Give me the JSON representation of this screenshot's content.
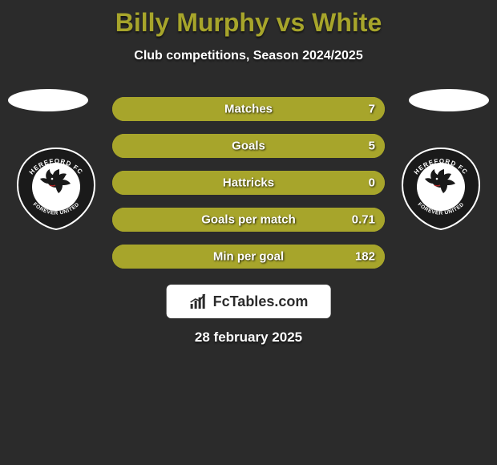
{
  "title": "Billy Murphy vs White",
  "title_color": "#a7a52b",
  "subtitle": "Club competitions, Season 2024/2025",
  "date": "28 february 2025",
  "background_color": "#2b2b2b",
  "brand": {
    "text": "FcTables.com",
    "box_bg": "#ffffff",
    "text_color": "#2b2b2b",
    "icon_color": "#2b2b2b"
  },
  "badges": {
    "left_name": "hereford-fc-badge",
    "right_name": "hereford-fc-badge",
    "top_text": "HEREFORD FC",
    "bottom_text": "FOREVER UNITED",
    "year": "2015",
    "outer_color": "#1a1a1a",
    "ring_color": "#ffffff",
    "inner_color": "#ffffff",
    "accent_color": "#b02525",
    "text_color": "#ffffff"
  },
  "side_ovals": {
    "left_color": "#ffffff",
    "right_color": "#ffffff"
  },
  "stats": {
    "bar_fill_color": "#a7a52b",
    "bar_border_color": "#a7a52b",
    "label_color": "#ffffff",
    "value_color": "#ffffff",
    "rows": [
      {
        "label": "Matches",
        "value": "7",
        "fill_pct": 100
      },
      {
        "label": "Goals",
        "value": "5",
        "fill_pct": 100
      },
      {
        "label": "Hattricks",
        "value": "0",
        "fill_pct": 100
      },
      {
        "label": "Goals per match",
        "value": "0.71",
        "fill_pct": 100
      },
      {
        "label": "Min per goal",
        "value": "182",
        "fill_pct": 100
      }
    ]
  }
}
